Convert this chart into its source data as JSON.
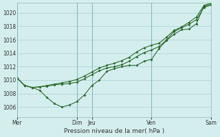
{
  "background_color": "#d4eeee",
  "grid_color": "#a8cece",
  "line_color": "#2d6a2d",
  "xlabel": "Pression niveau de la mer( hPa )",
  "ylim": [
    1004.5,
    1021.5
  ],
  "yticks": [
    1006,
    1008,
    1010,
    1012,
    1014,
    1016,
    1018,
    1020
  ],
  "day_labels": [
    "Mer",
    "Dim",
    "Jeu",
    "Ven",
    "Sam"
  ],
  "day_x": [
    0,
    8,
    10,
    18,
    26
  ],
  "series1_x": [
    0,
    1,
    2,
    3,
    4,
    5,
    6,
    7,
    8,
    9,
    10,
    11,
    12,
    13,
    14,
    15,
    16,
    17,
    18,
    19,
    20,
    21,
    22,
    23,
    24,
    25,
    26
  ],
  "series1_y": [
    1010.3,
    1009.2,
    1008.9,
    1008.5,
    1007.4,
    1006.5,
    1006.0,
    1006.3,
    1006.8,
    1007.8,
    1009.2,
    1010.0,
    1011.3,
    1011.7,
    1012.0,
    1012.2,
    1012.2,
    1012.8,
    1013.1,
    1014.7,
    1015.9,
    1016.8,
    1017.5,
    1017.6,
    1018.4,
    1021.0,
    1021.3
  ],
  "series2_x": [
    0,
    1,
    2,
    3,
    4,
    5,
    6,
    7,
    8,
    9,
    10,
    11,
    12,
    13,
    14,
    15,
    16,
    17,
    18,
    19,
    20,
    21,
    22,
    23,
    24,
    25,
    26
  ],
  "series2_y": [
    1010.3,
    1009.2,
    1008.9,
    1009.0,
    1009.1,
    1009.3,
    1009.4,
    1009.5,
    1009.7,
    1010.2,
    1010.8,
    1011.4,
    1011.8,
    1012.0,
    1012.3,
    1012.8,
    1013.5,
    1014.1,
    1014.5,
    1015.0,
    1016.0,
    1017.2,
    1017.8,
    1018.3,
    1019.0,
    1020.8,
    1021.2
  ],
  "series3_x": [
    0,
    1,
    2,
    3,
    4,
    5,
    6,
    7,
    8,
    9,
    10,
    11,
    12,
    13,
    14,
    15,
    16,
    17,
    18,
    19,
    20,
    21,
    22,
    23,
    24,
    25,
    26
  ],
  "series3_y": [
    1010.3,
    1009.2,
    1008.9,
    1009.0,
    1009.2,
    1009.4,
    1009.6,
    1009.8,
    1010.1,
    1010.6,
    1011.2,
    1011.8,
    1012.2,
    1012.5,
    1012.9,
    1013.4,
    1014.2,
    1014.8,
    1015.2,
    1015.5,
    1016.4,
    1017.4,
    1017.9,
    1018.6,
    1019.4,
    1021.1,
    1021.5
  ]
}
